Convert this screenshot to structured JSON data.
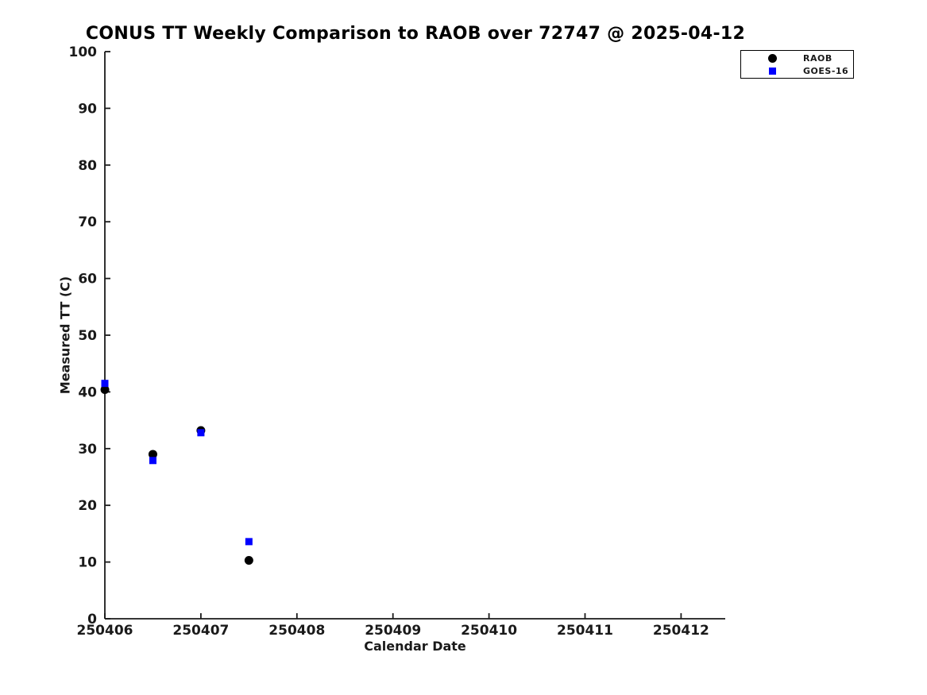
{
  "page": {
    "background": "#ffffff"
  },
  "chart_data": {
    "type": "scatter",
    "title": "CONUS TT Weekly Comparison to RAOB over 72747 @ 2025-04-12",
    "xlabel": "Calendar Date",
    "ylabel": "Measured TT (C)",
    "xlim": [
      250406,
      250412.46
    ],
    "ylim": [
      0,
      100
    ],
    "xticks": [
      250406,
      250407,
      250408,
      250409,
      250410,
      250411,
      250412
    ],
    "yticks": [
      0,
      10,
      20,
      30,
      40,
      50,
      60,
      70,
      80,
      90,
      100
    ],
    "grid": false,
    "legend_position": "top-right",
    "axis_color": "#1a1a1a",
    "series": [
      {
        "name": "RAOB",
        "marker": "circle",
        "color": "#000000",
        "x": [
          250406,
          250406.5,
          250407,
          250407.5
        ],
        "y": [
          40.4,
          29.0,
          33.2,
          10.3
        ]
      },
      {
        "name": "GOES-16",
        "marker": "square",
        "color": "#0000ff",
        "x": [
          250406,
          250406.5,
          250407,
          250407.5
        ],
        "y": [
          41.5,
          27.9,
          32.8,
          13.6
        ]
      }
    ]
  }
}
